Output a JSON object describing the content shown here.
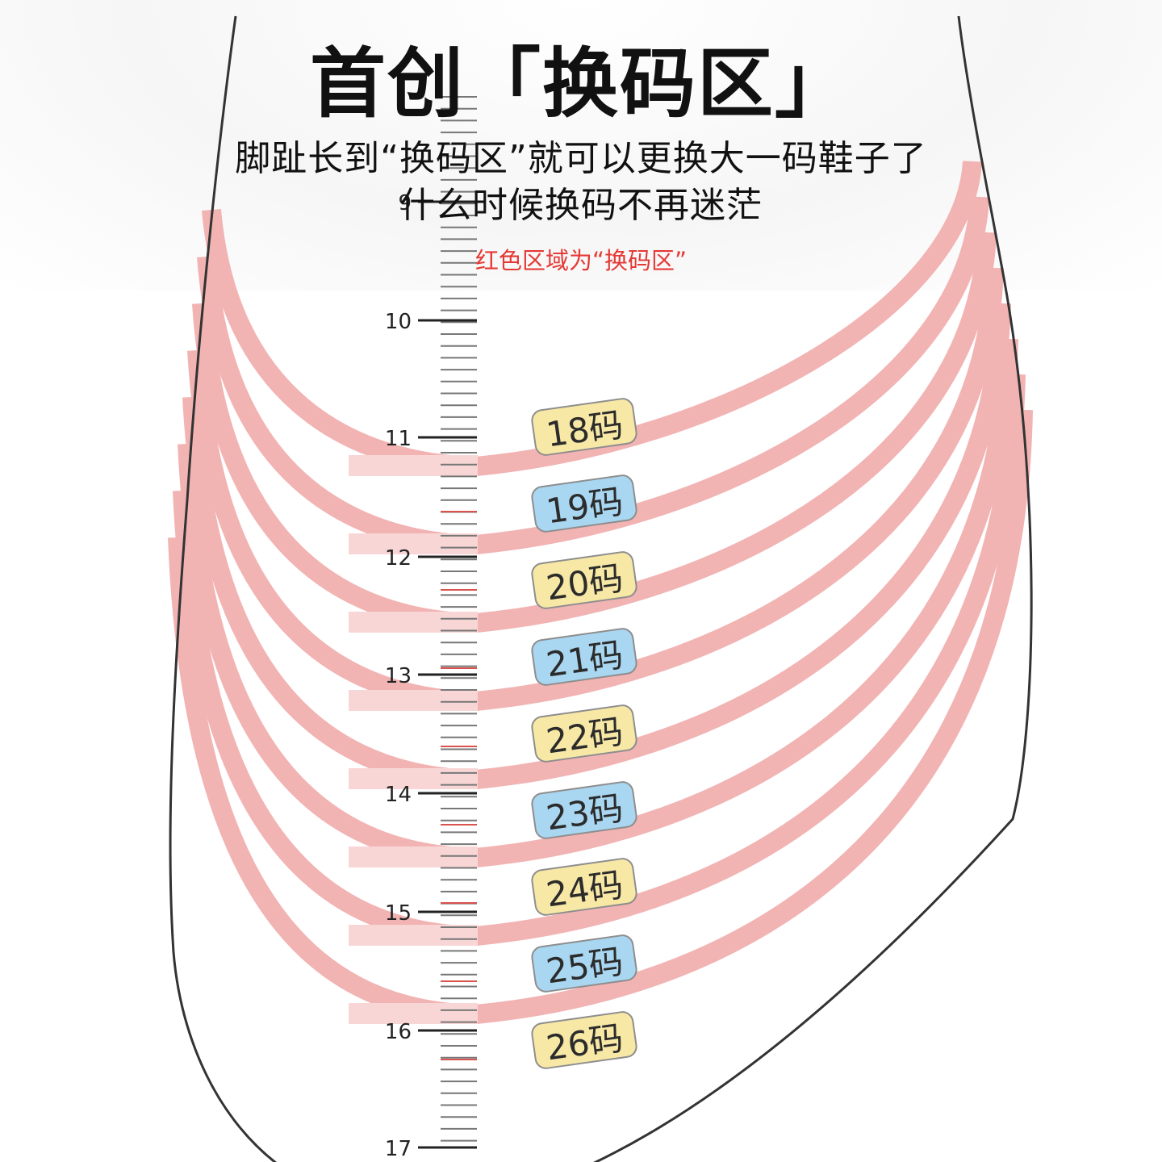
{
  "title": "首创「换码区」",
  "subtitle_line1": "脚趾长到“换码区”就可以更换大一码鞋子了",
  "subtitle_line2": "什么时候换码不再迷茫",
  "zone_note": "红色区域为“换码区”",
  "ruler": {
    "labels": [
      "9",
      "10",
      "11",
      "12",
      "13",
      "14",
      "15",
      "16",
      "17"
    ]
  },
  "sizes": [
    {
      "label": "18码",
      "color": "#f8e8a6"
    },
    {
      "label": "19码",
      "color": "#a9d6f0"
    },
    {
      "label": "20码",
      "color": "#f8e8a6"
    },
    {
      "label": "21码",
      "color": "#a9d6f0"
    },
    {
      "label": "22码",
      "color": "#f8e8a6"
    },
    {
      "label": "23码",
      "color": "#a9d6f0"
    },
    {
      "label": "24码",
      "color": "#f8e8a6"
    },
    {
      "label": "25码",
      "color": "#a9d6f0"
    },
    {
      "label": "26码",
      "color": "#f8e8a6"
    }
  ],
  "colors": {
    "zone_band": "#f2b3b3",
    "zone_band_light": "#f9d6d6",
    "outline": "#333333",
    "tick": "#444444",
    "tick_red": "#d9534f",
    "note_text": "#e53935"
  }
}
